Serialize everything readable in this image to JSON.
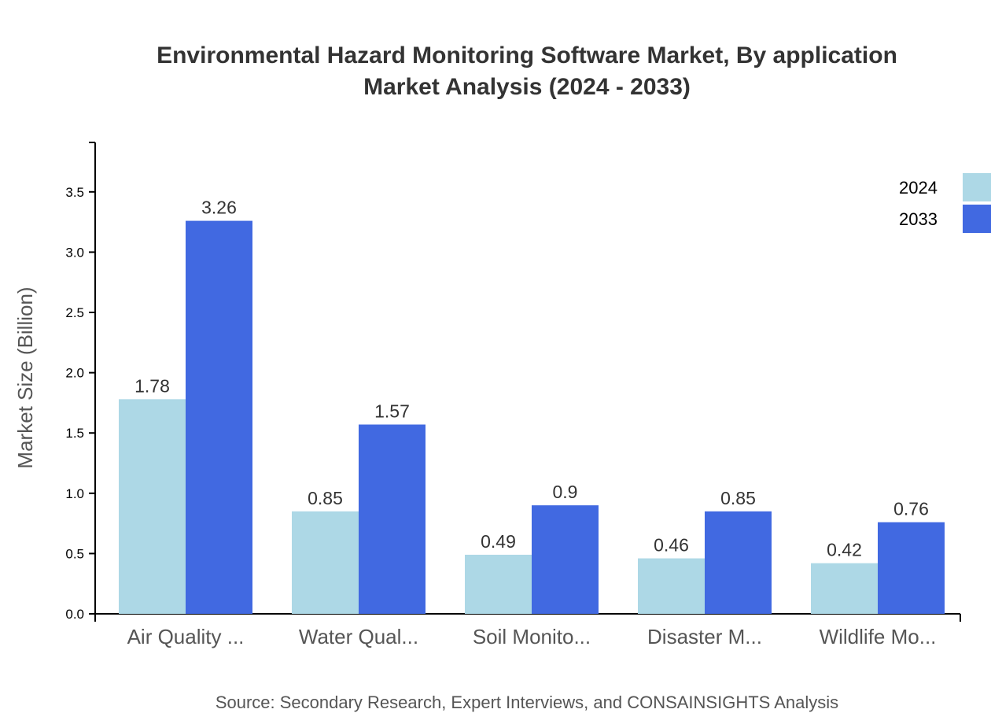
{
  "chart_data": {
    "type": "bar",
    "title": [
      "Environmental Hazard Monitoring Software Market, By application",
      "Market Analysis (2024 - 2033)"
    ],
    "xlabel": "",
    "ylabel": "Market Size (Billion)",
    "ylim": [
      0,
      3.91
    ],
    "yticks": [
      "0.0",
      "0.5",
      "1.0",
      "1.5",
      "2.0",
      "2.5",
      "3.0",
      "3.5"
    ],
    "grid": false,
    "legend_position": "top-right",
    "categories": [
      "Air Quality ...",
      "Water Qual...",
      "Soil Monito...",
      "Disaster M...",
      "Wildlife Mo..."
    ],
    "series": [
      {
        "name": "2024",
        "color": "#add8e6",
        "values": [
          1.78,
          0.85,
          0.49,
          0.46,
          0.42
        ]
      },
      {
        "name": "2033",
        "color": "#4169e1",
        "values": [
          3.26,
          1.57,
          0.9,
          0.85,
          0.76
        ]
      }
    ],
    "source": "Source: Secondary Research, Expert Interviews, and CONSAINSIGHTS Analysis"
  }
}
